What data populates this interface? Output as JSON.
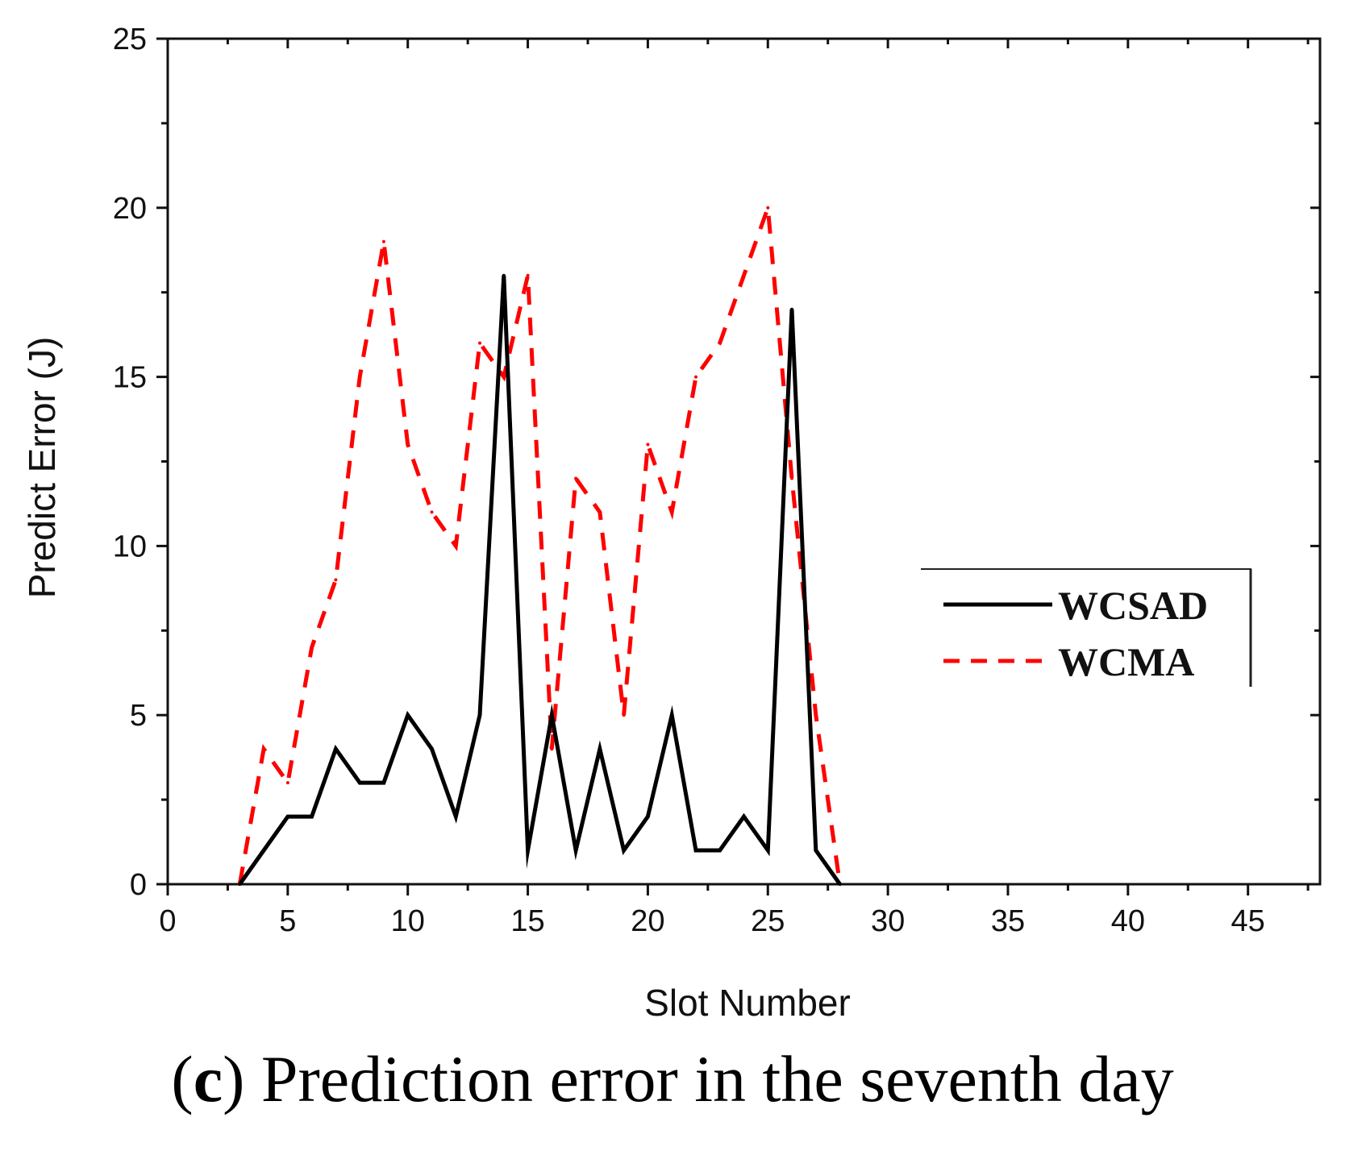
{
  "chart_data": {
    "type": "line",
    "title": "",
    "xlabel": "Slot Number",
    "ylabel": "Predict Error (J)",
    "xlim": [
      0,
      48
    ],
    "ylim": [
      0,
      25
    ],
    "xticks": [
      0,
      5,
      10,
      15,
      20,
      25,
      30,
      35,
      40,
      45
    ],
    "yticks": [
      0,
      5,
      10,
      15,
      20,
      25
    ],
    "grid": false,
    "legend_position": "right-middle",
    "series": [
      {
        "name": "WCSAD",
        "style": "solid",
        "color": "#000000",
        "x": [
          3,
          4,
          5,
          6,
          7,
          8,
          9,
          10,
          11,
          12,
          13,
          14,
          15,
          16,
          17,
          18,
          19,
          20,
          21,
          22,
          23,
          24,
          25,
          26,
          27,
          28
        ],
        "y": [
          0,
          1,
          2,
          2,
          4,
          3,
          3,
          5,
          4,
          2,
          5,
          18,
          1,
          5,
          1,
          4,
          1,
          2,
          5,
          1,
          1,
          2,
          1,
          17,
          1,
          0
        ]
      },
      {
        "name": "WCMA",
        "style": "dashed",
        "color": "#ff0000",
        "x": [
          3,
          4,
          5,
          6,
          7,
          8,
          9,
          10,
          11,
          12,
          13,
          14,
          15,
          16,
          17,
          18,
          19,
          20,
          21,
          22,
          23,
          24,
          25,
          26,
          27,
          28
        ],
        "y": [
          0,
          4,
          3,
          7,
          9,
          15,
          19,
          13,
          11,
          10,
          16,
          15,
          18,
          4,
          12,
          11,
          5,
          13,
          11,
          15,
          16,
          18,
          20,
          12,
          5,
          0
        ]
      }
    ]
  },
  "caption": {
    "open": "(",
    "letter": "c",
    "text": ") Prediction error in the seventh day"
  }
}
